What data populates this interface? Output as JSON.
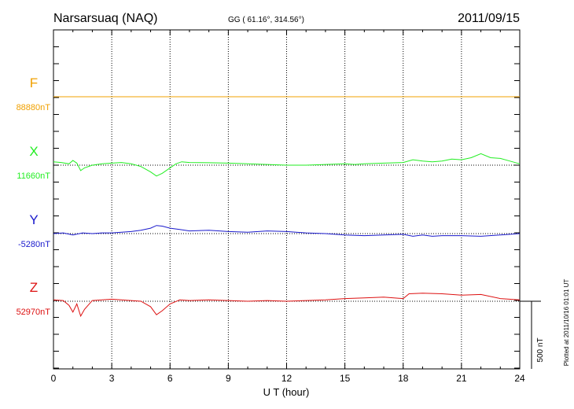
{
  "header": {
    "station": "Narsarsuaq (NAQ)",
    "coords": "GG ( 61.16°, 314.56°)",
    "date": "2011/09/15"
  },
  "footer": {
    "plotted": "Plotted at 2011/10/16 01:01 UT"
  },
  "chart_data": {
    "type": "line",
    "title": "Narsarsuaq (NAQ)",
    "xlabel": "U T (hour)",
    "ylabel": "",
    "xlim": [
      0,
      24
    ],
    "xticks": [
      0,
      3,
      6,
      9,
      12,
      15,
      18,
      21,
      24
    ],
    "grid": "vertical dotted at 3h steps",
    "scale_bar": {
      "label": "500 nT",
      "value_nT": 500
    },
    "series": [
      {
        "name": "F",
        "baseline_label": "88880nT",
        "baseline_nT": 88880,
        "color": "#f0a000",
        "x": [
          0,
          1,
          2,
          3,
          4,
          5,
          6,
          7,
          8,
          9,
          10,
          11,
          12,
          13,
          14,
          15,
          16,
          17,
          18,
          19,
          20,
          21,
          22,
          23,
          24
        ],
        "y": [
          0,
          0,
          0,
          0,
          0,
          0,
          0,
          0,
          0,
          0,
          0,
          0,
          0,
          0,
          0,
          0,
          0,
          0,
          0,
          0,
          0,
          0,
          0,
          0,
          0
        ]
      },
      {
        "name": "X",
        "baseline_label": "11660nT",
        "baseline_nT": 11660,
        "color": "#22ee22",
        "x": [
          0,
          0.4,
          0.8,
          1.0,
          1.2,
          1.4,
          1.6,
          2.0,
          2.5,
          3.0,
          3.5,
          4.0,
          4.5,
          5.0,
          5.3,
          5.6,
          5.9,
          6.3,
          6.6,
          7,
          8,
          9,
          10,
          11,
          12,
          13,
          14,
          15,
          15.5,
          16,
          17,
          18,
          18.5,
          19,
          19.5,
          20,
          20.5,
          21,
          21.5,
          22,
          22.5,
          23,
          23.5,
          24
        ],
        "y": [
          25,
          20,
          10,
          35,
          15,
          -40,
          -20,
          0,
          10,
          15,
          20,
          10,
          -10,
          -50,
          -80,
          -60,
          -30,
          10,
          25,
          20,
          18,
          15,
          10,
          5,
          0,
          0,
          5,
          10,
          5,
          10,
          15,
          20,
          40,
          30,
          25,
          30,
          45,
          40,
          55,
          85,
          55,
          50,
          30,
          10
        ]
      },
      {
        "name": "Y",
        "baseline_label": "-5280nT",
        "baseline_nT": -5280,
        "color": "#1a1acc",
        "x": [
          0,
          0.5,
          1.0,
          1.5,
          2.0,
          2.5,
          3.0,
          3.5,
          4.0,
          4.5,
          5.0,
          5.3,
          5.6,
          6.0,
          6.5,
          7,
          8,
          9,
          10,
          11,
          12,
          13,
          14,
          15,
          16,
          17,
          18,
          18.5,
          19,
          19.5,
          20,
          21,
          22,
          23,
          24
        ],
        "y": [
          0,
          5,
          -10,
          5,
          0,
          5,
          5,
          10,
          15,
          25,
          40,
          60,
          55,
          40,
          30,
          20,
          25,
          15,
          10,
          20,
          15,
          5,
          0,
          -10,
          -15,
          -10,
          -5,
          -20,
          -10,
          -20,
          -15,
          -15,
          -20,
          -10,
          0
        ]
      },
      {
        "name": "Z",
        "baseline_label": "52970nT",
        "baseline_nT": 52970,
        "color": "#dd1111",
        "x": [
          0,
          0.5,
          0.8,
          1.0,
          1.2,
          1.4,
          1.6,
          2.0,
          2.5,
          3.0,
          3.5,
          4.0,
          4.5,
          5.0,
          5.3,
          5.6,
          6.0,
          6.5,
          7,
          8,
          9,
          10,
          11,
          12,
          13,
          14,
          15,
          16,
          17,
          18,
          18.3,
          19,
          20,
          21,
          22,
          23,
          24
        ],
        "y": [
          10,
          5,
          -30,
          -80,
          -20,
          -110,
          -60,
          5,
          10,
          15,
          10,
          5,
          0,
          -40,
          -100,
          -70,
          -20,
          10,
          5,
          10,
          5,
          0,
          5,
          0,
          5,
          10,
          20,
          25,
          30,
          20,
          55,
          60,
          55,
          45,
          50,
          20,
          10
        ]
      }
    ]
  }
}
